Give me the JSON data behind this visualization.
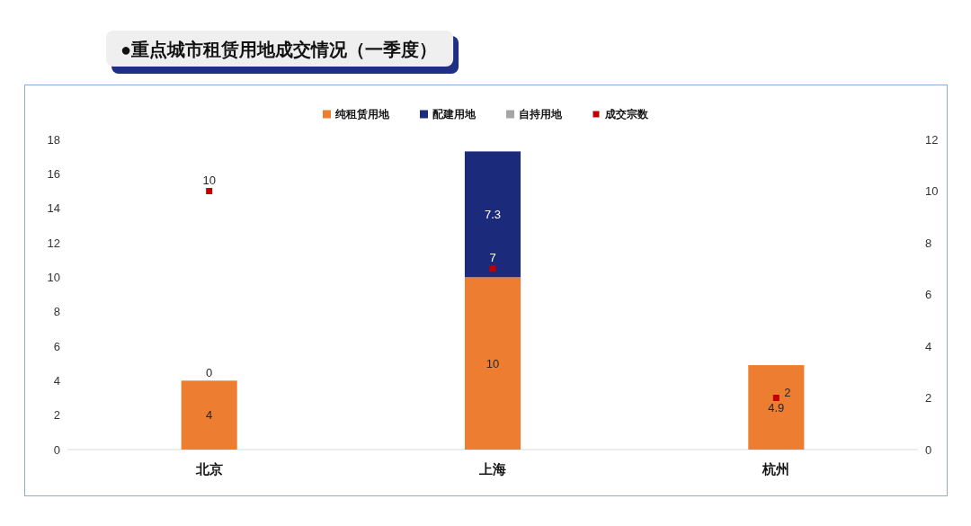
{
  "chart_data": {
    "type": "bar",
    "title": "●重点城市租赁用地成交情况（一季度）",
    "categories": [
      "北京",
      "上海",
      "杭州"
    ],
    "stacked": true,
    "series": [
      {
        "name": "纯租赁用地",
        "color": "#ed7d31",
        "values": [
          4,
          10,
          4.9
        ],
        "value_labels": [
          "4",
          "10",
          "4.9"
        ]
      },
      {
        "name": "配建用地",
        "color": "#1b2a7b",
        "values": [
          0,
          7.3,
          null
        ],
        "value_labels": [
          "0",
          "7.3",
          null
        ]
      },
      {
        "name": "自持用地",
        "color": "#a5a5a5",
        "values": [
          null,
          null,
          null
        ]
      },
      {
        "name": "成交宗数",
        "type": "scatter",
        "axis": "y2",
        "color": "#c00000",
        "values": [
          10,
          7,
          2
        ],
        "value_labels": [
          "10",
          "7",
          "2"
        ]
      }
    ],
    "ylim": [
      0,
      18
    ],
    "yticks": [
      0,
      2,
      4,
      6,
      8,
      10,
      12,
      14,
      16,
      18
    ],
    "y2lim": [
      0,
      12
    ],
    "y2ticks": [
      0,
      2,
      4,
      6,
      8,
      10,
      12
    ],
    "legend": "top",
    "marker": "square"
  }
}
